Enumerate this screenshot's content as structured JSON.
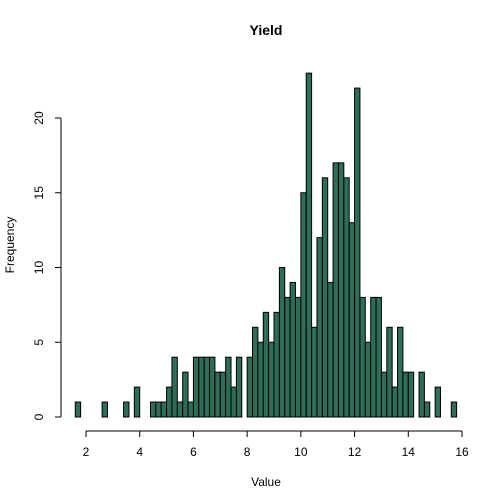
{
  "chart_data": {
    "type": "bar",
    "title": "Yield",
    "xlabel": "Value",
    "ylabel": "Frequency",
    "bar_color": "#2e6e56",
    "xlim": [
      1.6,
      15.8
    ],
    "ylim": [
      0,
      23
    ],
    "bin_width": 0.2,
    "x_ticks": [
      2,
      4,
      6,
      8,
      10,
      12,
      14,
      16
    ],
    "x_tick_labels": [
      "2",
      "4",
      "6",
      "8",
      "10",
      "12",
      "14",
      "16"
    ],
    "y_ticks": [
      0,
      5,
      10,
      15,
      20
    ],
    "y_tick_labels": [
      "0",
      "5",
      "10",
      "15",
      "20"
    ],
    "bin_starts": [
      1.6,
      1.8,
      2.0,
      2.2,
      2.4,
      2.6,
      2.8,
      3.0,
      3.2,
      3.4,
      3.6,
      3.8,
      4.0,
      4.2,
      4.4,
      4.6,
      4.8,
      5.0,
      5.2,
      5.4,
      5.6,
      5.8,
      6.0,
      6.2,
      6.4,
      6.6,
      6.8,
      7.0,
      7.2,
      7.4,
      7.6,
      7.8,
      8.0,
      8.2,
      8.4,
      8.6,
      8.8,
      9.0,
      9.2,
      9.4,
      9.6,
      9.8,
      10.0,
      10.2,
      10.4,
      10.6,
      10.8,
      11.0,
      11.2,
      11.4,
      11.6,
      11.8,
      12.0,
      12.2,
      12.4,
      12.6,
      12.8,
      13.0,
      13.2,
      13.4,
      13.6,
      13.8,
      14.0,
      14.2,
      14.4,
      14.6,
      14.8,
      15.0,
      15.2,
      15.4,
      15.6
    ],
    "values": [
      1,
      0,
      0,
      0,
      0,
      1,
      0,
      0,
      0,
      1,
      0,
      2,
      0,
      0,
      1,
      1,
      1,
      2,
      4,
      1,
      3,
      1,
      4,
      4,
      4,
      4,
      3,
      3,
      4,
      2,
      4,
      0,
      4,
      6,
      5,
      7,
      5,
      7,
      10,
      8,
      9,
      8,
      15,
      23,
      6,
      12,
      16,
      9,
      17,
      17,
      16,
      13,
      22,
      8,
      5,
      8,
      8,
      3,
      6,
      2,
      6,
      3,
      3,
      0,
      3,
      1,
      0,
      2,
      0,
      0,
      1
    ]
  }
}
